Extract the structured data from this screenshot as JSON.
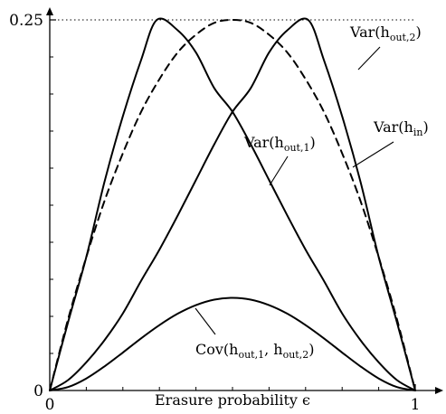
{
  "chart_data": {
    "type": "line",
    "xlabel": "Erasure probability ϵ",
    "ylabel": "",
    "xlim": [
      0,
      1
    ],
    "ylim": [
      0,
      0.25
    ],
    "x_ticks": [
      "0",
      "1"
    ],
    "y_ticks": [
      "0",
      "0.25"
    ],
    "reference_line": {
      "y": 0.25,
      "style": "dotted"
    },
    "series": [
      {
        "name": "Var(h_out,2)",
        "label_main": "Var(h",
        "label_sub": "out,2",
        "label_tail": ")",
        "style": "solid",
        "x": [
          0,
          0.05,
          0.1,
          0.15,
          0.2,
          0.25,
          0.293,
          0.35,
          0.4,
          0.45,
          0.5,
          0.55,
          0.6,
          0.65,
          0.7,
          0.75,
          0.8,
          0.85,
          0.9,
          0.95,
          1
        ],
        "y": [
          0,
          0.046,
          0.09,
          0.141,
          0.185,
          0.223,
          0.25,
          0.243,
          0.228,
          0.204,
          0.188,
          0.166,
          0.142,
          0.118,
          0.095,
          0.074,
          0.052,
          0.034,
          0.019,
          0.007,
          0
        ]
      },
      {
        "name": "Var(h_in)",
        "label_main": "Var(h",
        "label_sub": "in",
        "label_tail": ")",
        "style": "dashed",
        "x": [
          0,
          0.05,
          0.1,
          0.15,
          0.2,
          0.25,
          0.3,
          0.35,
          0.4,
          0.45,
          0.5,
          0.55,
          0.6,
          0.65,
          0.7,
          0.75,
          0.8,
          0.85,
          0.9,
          0.95,
          1
        ],
        "y": [
          0,
          0.048,
          0.09,
          0.128,
          0.16,
          0.188,
          0.21,
          0.228,
          0.24,
          0.248,
          0.25,
          0.248,
          0.24,
          0.228,
          0.21,
          0.188,
          0.16,
          0.128,
          0.09,
          0.048,
          0
        ]
      },
      {
        "name": "Var(h_out,1)",
        "label_main": "Var(h",
        "label_sub": "out,1",
        "label_tail": ")",
        "style": "solid",
        "x": [
          0,
          0.05,
          0.1,
          0.15,
          0.2,
          0.25,
          0.3,
          0.35,
          0.4,
          0.45,
          0.5,
          0.55,
          0.6,
          0.65,
          0.707,
          0.75,
          0.8,
          0.85,
          0.9,
          0.95,
          1
        ],
        "y": [
          0,
          0.007,
          0.019,
          0.034,
          0.052,
          0.074,
          0.095,
          0.118,
          0.142,
          0.166,
          0.188,
          0.204,
          0.228,
          0.243,
          0.25,
          0.223,
          0.185,
          0.141,
          0.09,
          0.046,
          0
        ]
      },
      {
        "name": "Cov(h_out,1, h_out,2)",
        "label_main": "Cov(h",
        "label_sub": "out,1",
        "label_mid": ", h",
        "label_sub2": "out,2",
        "label_tail": ")",
        "style": "solid",
        "x": [
          0,
          0.05,
          0.1,
          0.15,
          0.2,
          0.25,
          0.3,
          0.35,
          0.4,
          0.45,
          0.5,
          0.55,
          0.6,
          0.65,
          0.7,
          0.75,
          0.8,
          0.85,
          0.9,
          0.95,
          1
        ],
        "y": [
          0,
          0.0023,
          0.0081,
          0.0163,
          0.0256,
          0.0352,
          0.0441,
          0.0518,
          0.0576,
          0.0613,
          0.0625,
          0.0613,
          0.0576,
          0.0518,
          0.0441,
          0.0352,
          0.0256,
          0.0163,
          0.0081,
          0.0023,
          0
        ]
      }
    ]
  }
}
